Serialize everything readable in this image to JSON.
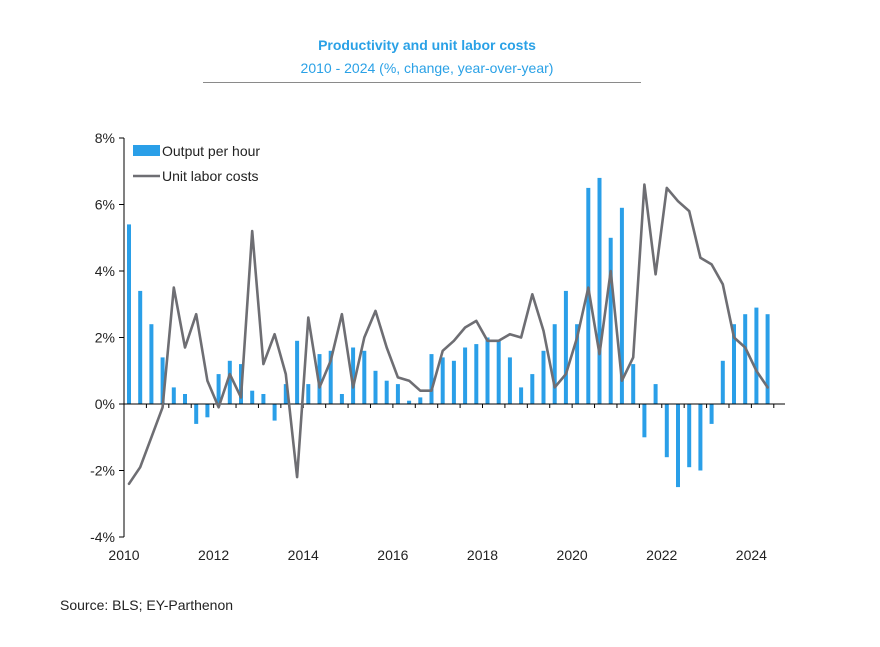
{
  "header": {
    "title": "Productivity and unit labor costs",
    "subtitle": "2010 - 2024 (%, change, year-over-year)"
  },
  "footer": {
    "source": "Source: BLS; EY-Parthenon"
  },
  "colors": {
    "bars": "#2a9fe8",
    "line": "#6e6e73",
    "axis": "#000000"
  },
  "chart_data": {
    "type": "bar",
    "title": "Productivity and unit labor costs",
    "subtitle": "2010 - 2024 (%, change, year-over-year)",
    "xlabel": "",
    "ylabel": "",
    "ylim": [
      -4,
      8
    ],
    "yticks": [
      -4,
      -2,
      0,
      2,
      4,
      6,
      8
    ],
    "ytick_labels": [
      "-4%",
      "-2%",
      "0%",
      "2%",
      "4%",
      "6%",
      "8%"
    ],
    "xlim": [
      2010,
      2024.75
    ],
    "xticks": [
      2010,
      2012,
      2014,
      2016,
      2018,
      2020,
      2022,
      2024
    ],
    "xtick_labels": [
      "2010",
      "2012",
      "2014",
      "2016",
      "2018",
      "2020",
      "2022",
      "2024"
    ],
    "grid": false,
    "legend": "top-left",
    "x": [
      2010.0,
      2010.25,
      2010.5,
      2010.75,
      2011.0,
      2011.25,
      2011.5,
      2011.75,
      2012.0,
      2012.25,
      2012.5,
      2012.75,
      2013.0,
      2013.25,
      2013.5,
      2013.75,
      2014.0,
      2014.25,
      2014.5,
      2014.75,
      2015.0,
      2015.25,
      2015.5,
      2015.75,
      2016.0,
      2016.25,
      2016.5,
      2016.75,
      2017.0,
      2017.25,
      2017.5,
      2017.75,
      2018.0,
      2018.25,
      2018.5,
      2018.75,
      2019.0,
      2019.25,
      2019.5,
      2019.75,
      2020.0,
      2020.25,
      2020.5,
      2020.75,
      2021.0,
      2021.25,
      2021.5,
      2021.75,
      2022.0,
      2022.25,
      2022.5,
      2022.75,
      2023.0,
      2023.25,
      2023.5,
      2023.75,
      2024.0,
      2024.25,
      2024.5
    ],
    "series": [
      {
        "name": "Output per hour",
        "kind": "bar",
        "values": [
          5.4,
          3.4,
          2.4,
          1.4,
          0.5,
          0.3,
          -0.6,
          -0.4,
          0.9,
          1.3,
          1.2,
          0.4,
          0.3,
          -0.5,
          0.6,
          1.9,
          0.6,
          1.5,
          1.6,
          0.3,
          1.7,
          1.6,
          1.0,
          0.7,
          0.6,
          0.1,
          0.2,
          1.5,
          1.4,
          1.3,
          1.7,
          1.8,
          2.0,
          1.9,
          1.4,
          0.5,
          0.9,
          1.6,
          2.4,
          3.4,
          2.4,
          6.5,
          6.8,
          5.0,
          5.9,
          1.2,
          -1.0,
          0.6,
          -1.6,
          -2.5,
          -1.9,
          -2.0,
          -0.6,
          1.3,
          2.4,
          2.7,
          2.9,
          2.7,
          null
        ]
      },
      {
        "name": "Unit labor costs",
        "kind": "line",
        "values": [
          -2.4,
          -1.9,
          -1.0,
          -0.1,
          3.5,
          1.7,
          2.7,
          0.7,
          -0.1,
          0.9,
          0.2,
          5.2,
          1.2,
          2.1,
          0.9,
          -2.2,
          2.6,
          0.5,
          1.3,
          2.7,
          0.5,
          2.0,
          2.8,
          1.7,
          0.8,
          0.7,
          0.4,
          0.4,
          1.6,
          1.9,
          2.3,
          2.5,
          1.9,
          1.9,
          2.1,
          2.0,
          3.3,
          2.2,
          0.5,
          0.9,
          2.0,
          3.5,
          1.5,
          4.0,
          0.7,
          1.4,
          6.6,
          3.9,
          6.5,
          6.1,
          5.8,
          4.4,
          4.2,
          3.6,
          2.0,
          1.7,
          1.0,
          0.5,
          null
        ]
      }
    ]
  }
}
